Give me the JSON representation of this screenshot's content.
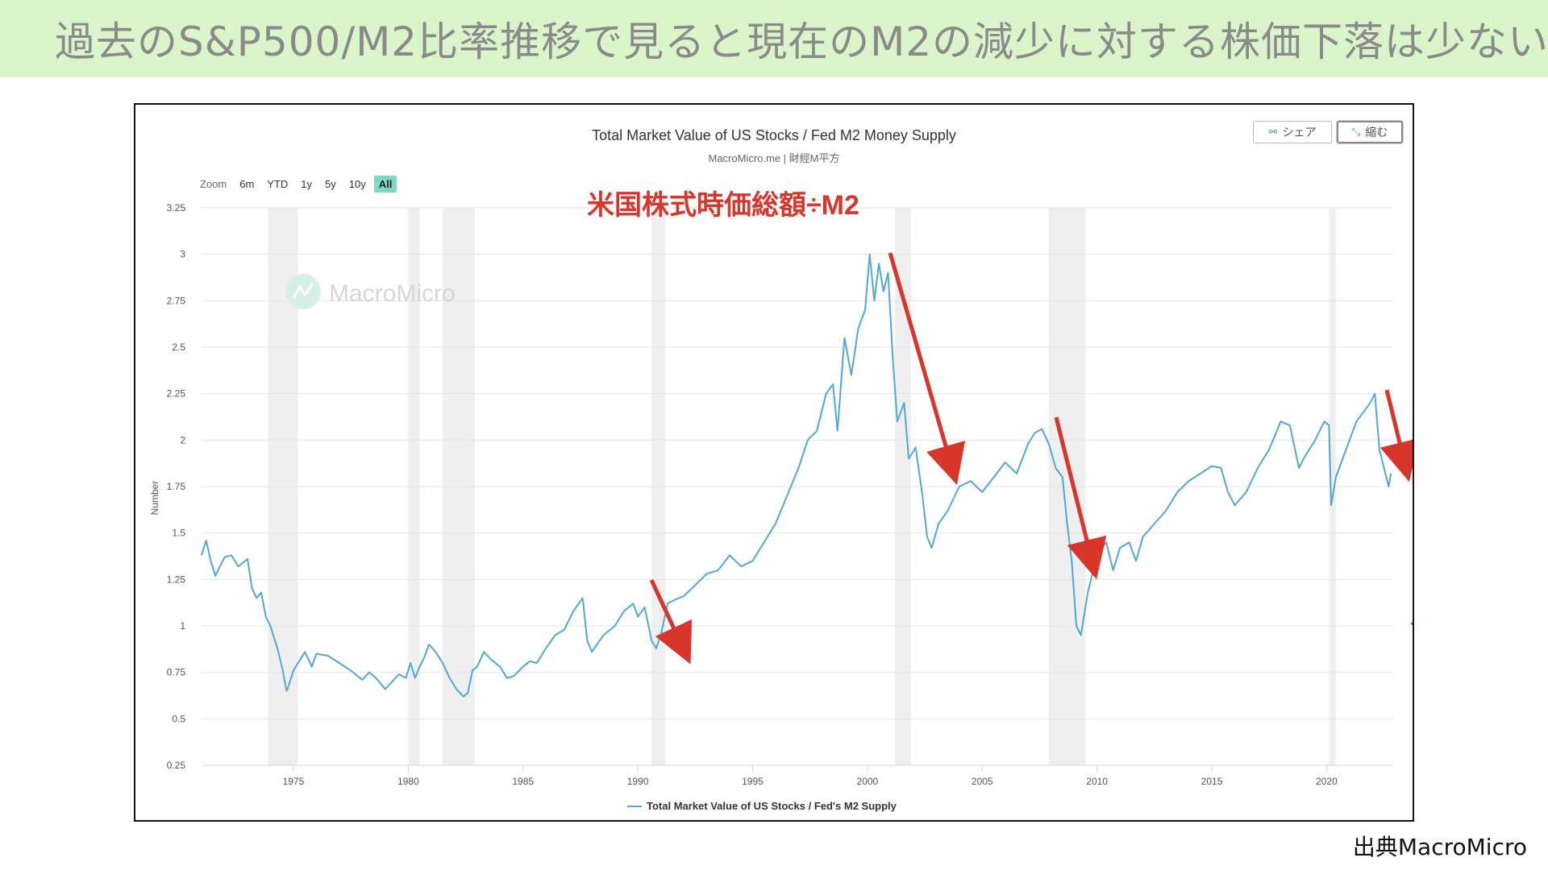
{
  "banner": {
    "title": "過去のS&P500/M2比率推移で見ると現在のM2の減少に対する株価下落は少ない"
  },
  "toolbar": {
    "share_label": "シェア",
    "shrink_label": "縮む",
    "zoom_label": "Zoom",
    "zoom_options": [
      "6m",
      "YTD",
      "1y",
      "5y",
      "10y",
      "All"
    ],
    "zoom_selected": "All"
  },
  "watermark": "MacroMicro",
  "annotation": "米国株式時価総額÷M2",
  "source": "出典MacroMicro",
  "colors": {
    "line": "#4fa8d6",
    "arrow": "#d8362a",
    "recession": "#efefef",
    "banner": "#d9f5c9"
  },
  "chart_data": {
    "type": "line",
    "title": "Total Market Value of US Stocks / Fed M2 Money Supply",
    "subtitle": "MacroMicro.me | 財經M平方",
    "ylabel": "Number",
    "xlabel": "",
    "ylim": [
      0.25,
      3.25
    ],
    "yticks": [
      "0.25",
      "0.5",
      "0.75",
      "1",
      "1.25",
      "1.5",
      "1.75",
      "2",
      "2.25",
      "2.5",
      "2.75",
      "3",
      "3.25"
    ],
    "xlim": [
      1971,
      2022.9
    ],
    "xticks": [
      "1975",
      "1980",
      "1985",
      "1990",
      "1995",
      "2000",
      "2005",
      "2010",
      "2015",
      "2020"
    ],
    "legend_position": "bottom",
    "grid": true,
    "recessions": [
      [
        1973.9,
        1975.2
      ],
      [
        1980.0,
        1980.5
      ],
      [
        1981.5,
        1982.9
      ],
      [
        1990.6,
        1991.2
      ],
      [
        2001.2,
        2001.9
      ],
      [
        2007.9,
        2009.5
      ],
      [
        2020.1,
        2020.4
      ]
    ],
    "series": [
      {
        "name": "Total Market Value of US Stocks / Fed's M2 Supply",
        "x": [
          1971.0,
          1971.2,
          1971.4,
          1971.6,
          1972.0,
          1972.3,
          1972.6,
          1973.0,
          1973.2,
          1973.4,
          1973.6,
          1973.8,
          1974.0,
          1974.3,
          1974.5,
          1974.7,
          1974.8,
          1975.0,
          1975.2,
          1975.5,
          1975.8,
          1976.0,
          1976.5,
          1977.0,
          1977.5,
          1978.0,
          1978.3,
          1978.6,
          1979.0,
          1979.3,
          1979.6,
          1979.9,
          1980.1,
          1980.3,
          1980.5,
          1980.7,
          1980.9,
          1981.2,
          1981.5,
          1981.8,
          1982.1,
          1982.4,
          1982.6,
          1982.8,
          1983.0,
          1983.3,
          1983.6,
          1984.0,
          1984.3,
          1984.6,
          1985.0,
          1985.3,
          1985.6,
          1986.0,
          1986.4,
          1986.8,
          1987.2,
          1987.6,
          1987.8,
          1988.0,
          1988.5,
          1989.0,
          1989.4,
          1989.8,
          1990.0,
          1990.3,
          1990.6,
          1990.8,
          1991.0,
          1991.3,
          1991.6,
          1992.0,
          1992.5,
          1993.0,
          1993.5,
          1994.0,
          1994.5,
          1995.0,
          1995.5,
          1996.0,
          1996.5,
          1997.0,
          1997.4,
          1997.8,
          1998.2,
          1998.5,
          1998.7,
          1999.0,
          1999.3,
          1999.6,
          1999.9,
          2000.1,
          2000.3,
          2000.5,
          2000.7,
          2000.9,
          2001.1,
          2001.3,
          2001.6,
          2001.8,
          2002.1,
          2002.4,
          2002.6,
          2002.8,
          2003.1,
          2003.5,
          2004.0,
          2004.5,
          2005.0,
          2005.5,
          2006.0,
          2006.5,
          2007.0,
          2007.3,
          2007.6,
          2007.9,
          2008.2,
          2008.5,
          2008.7,
          2008.9,
          2009.1,
          2009.3,
          2009.6,
          2010.0,
          2010.4,
          2010.7,
          2011.0,
          2011.4,
          2011.7,
          2012.0,
          2012.5,
          2013.0,
          2013.5,
          2014.0,
          2014.5,
          2015.0,
          2015.4,
          2015.7,
          2016.0,
          2016.5,
          2017.0,
          2017.5,
          2018.0,
          2018.4,
          2018.8,
          2019.0,
          2019.5,
          2019.9,
          2020.1,
          2020.2,
          2020.4,
          2020.7,
          2021.0,
          2021.3,
          2021.6,
          2021.9,
          2022.1,
          2022.3,
          2022.5,
          2022.7,
          2022.8
        ],
        "values": [
          1.38,
          1.46,
          1.35,
          1.27,
          1.37,
          1.38,
          1.32,
          1.36,
          1.2,
          1.15,
          1.18,
          1.05,
          1.0,
          0.88,
          0.78,
          0.65,
          0.68,
          0.76,
          0.8,
          0.86,
          0.78,
          0.85,
          0.84,
          0.8,
          0.76,
          0.71,
          0.75,
          0.72,
          0.66,
          0.7,
          0.74,
          0.72,
          0.8,
          0.72,
          0.78,
          0.83,
          0.9,
          0.86,
          0.8,
          0.72,
          0.66,
          0.62,
          0.64,
          0.76,
          0.78,
          0.86,
          0.82,
          0.78,
          0.72,
          0.73,
          0.78,
          0.81,
          0.8,
          0.88,
          0.95,
          0.98,
          1.08,
          1.15,
          0.92,
          0.86,
          0.95,
          1.0,
          1.08,
          1.12,
          1.05,
          1.1,
          0.92,
          0.88,
          0.95,
          1.12,
          1.14,
          1.16,
          1.22,
          1.28,
          1.3,
          1.38,
          1.32,
          1.35,
          1.45,
          1.55,
          1.7,
          1.85,
          2.0,
          2.05,
          2.25,
          2.3,
          2.05,
          2.55,
          2.35,
          2.6,
          2.7,
          3.0,
          2.75,
          2.95,
          2.8,
          2.9,
          2.45,
          2.1,
          2.2,
          1.9,
          1.96,
          1.7,
          1.48,
          1.42,
          1.55,
          1.62,
          1.75,
          1.78,
          1.72,
          1.8,
          1.88,
          1.82,
          1.98,
          2.04,
          2.06,
          1.98,
          1.85,
          1.8,
          1.55,
          1.35,
          1.0,
          0.95,
          1.18,
          1.38,
          1.45,
          1.3,
          1.42,
          1.45,
          1.35,
          1.48,
          1.55,
          1.62,
          1.72,
          1.78,
          1.82,
          1.86,
          1.85,
          1.72,
          1.65,
          1.72,
          1.85,
          1.95,
          2.1,
          2.08,
          1.85,
          1.9,
          2.0,
          2.1,
          2.08,
          1.65,
          1.8,
          1.9,
          2.0,
          2.1,
          2.15,
          2.2,
          2.25,
          1.95,
          1.85,
          1.75,
          1.82
        ]
      }
    ]
  }
}
